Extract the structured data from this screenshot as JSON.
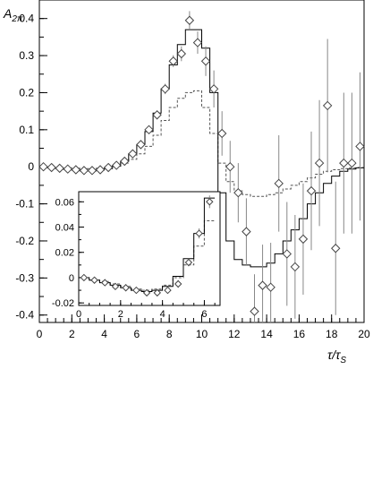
{
  "chart_data": [
    {
      "type": "scatter",
      "ylabel_main": "A",
      "ylabel_sub": "2π",
      "xlabel_main": "τ/τ",
      "xlabel_sub": "S",
      "xlim": [
        0,
        20
      ],
      "ylim": [
        -0.42,
        0.45
      ],
      "x_ticks": [
        0,
        2,
        4,
        6,
        8,
        10,
        12,
        14,
        16,
        18,
        20
      ],
      "x_tick_labels": [
        "0",
        "2",
        "4",
        "6",
        "8",
        "10",
        "12",
        "14",
        "16",
        "18",
        "20"
      ],
      "y_ticks": [
        -0.4,
        -0.3,
        -0.2,
        -0.1,
        0,
        0.1,
        0.2,
        0.3,
        0.4
      ],
      "y_tick_labels": [
        "-0.4",
        "-0.3",
        "-0.2",
        "-0.1",
        "0",
        "0.1",
        "0.2",
        "0.3",
        "0.4"
      ],
      "points": [
        {
          "x": 0.25,
          "y": 0.0,
          "err": 0.004
        },
        {
          "x": 0.75,
          "y": -0.002,
          "err": 0.004
        },
        {
          "x": 1.25,
          "y": -0.004,
          "err": 0.004
        },
        {
          "x": 1.75,
          "y": -0.006,
          "err": 0.004
        },
        {
          "x": 2.25,
          "y": -0.008,
          "err": 0.004
        },
        {
          "x": 2.75,
          "y": -0.01,
          "err": 0.004
        },
        {
          "x": 3.25,
          "y": -0.01,
          "err": 0.005
        },
        {
          "x": 3.75,
          "y": -0.008,
          "err": 0.005
        },
        {
          "x": 4.25,
          "y": -0.002,
          "err": 0.005
        },
        {
          "x": 4.75,
          "y": 0.004,
          "err": 0.006
        },
        {
          "x": 5.25,
          "y": 0.015,
          "err": 0.007
        },
        {
          "x": 5.75,
          "y": 0.035,
          "err": 0.008
        },
        {
          "x": 6.25,
          "y": 0.06,
          "err": 0.009
        },
        {
          "x": 6.75,
          "y": 0.1,
          "err": 0.01
        },
        {
          "x": 7.25,
          "y": 0.14,
          "err": 0.012
        },
        {
          "x": 7.75,
          "y": 0.21,
          "err": 0.014
        },
        {
          "x": 8.25,
          "y": 0.285,
          "err": 0.016
        },
        {
          "x": 8.75,
          "y": 0.305,
          "err": 0.02
        },
        {
          "x": 9.25,
          "y": 0.395,
          "err": 0.025
        },
        {
          "x": 9.75,
          "y": 0.335,
          "err": 0.03
        },
        {
          "x": 10.25,
          "y": 0.285,
          "err": 0.04
        },
        {
          "x": 10.75,
          "y": 0.21,
          "err": 0.05
        },
        {
          "x": 11.25,
          "y": 0.09,
          "err": 0.06
        },
        {
          "x": 11.75,
          "y": 0.0,
          "err": 0.07
        },
        {
          "x": 12.25,
          "y": -0.07,
          "err": 0.08
        },
        {
          "x": 12.75,
          "y": -0.175,
          "err": 0.09
        },
        {
          "x": 13.25,
          "y": -0.39,
          "err": 0.1
        },
        {
          "x": 13.75,
          "y": -0.32,
          "err": 0.11
        },
        {
          "x": 14.25,
          "y": -0.325,
          "err": 0.12
        },
        {
          "x": 14.75,
          "y": -0.045,
          "err": 0.13
        },
        {
          "x": 15.25,
          "y": -0.235,
          "err": 0.14
        },
        {
          "x": 15.75,
          "y": -0.27,
          "err": 0.14
        },
        {
          "x": 16.25,
          "y": -0.195,
          "err": 0.15
        },
        {
          "x": 16.75,
          "y": -0.065,
          "err": 0.16
        },
        {
          "x": 17.25,
          "y": 0.01,
          "err": 0.17
        },
        {
          "x": 17.75,
          "y": 0.165,
          "err": 0.18
        },
        {
          "x": 18.25,
          "y": -0.22,
          "err": 0.18
        },
        {
          "x": 18.75,
          "y": 0.01,
          "err": 0.19
        },
        {
          "x": 19.25,
          "y": 0.01,
          "err": 0.19
        },
        {
          "x": 19.75,
          "y": 0.055,
          "err": 0.2
        }
      ],
      "solid_histogram": {
        "bin_width": 0.5,
        "x_start": 0,
        "values": [
          0.0,
          -0.003,
          -0.005,
          -0.007,
          -0.009,
          -0.011,
          -0.011,
          -0.009,
          -0.005,
          0.002,
          0.015,
          0.035,
          0.06,
          0.095,
          0.145,
          0.21,
          0.275,
          0.33,
          0.37,
          0.37,
          0.32,
          0.2,
          -0.07,
          -0.2,
          -0.25,
          -0.265,
          -0.27,
          -0.27,
          -0.26,
          -0.235,
          -0.2,
          -0.17,
          -0.14,
          -0.1,
          -0.07,
          -0.045,
          -0.025,
          -0.012,
          -0.006,
          -0.003
        ]
      },
      "dashed_histogram": {
        "bin_width": 0.5,
        "x_start": 0,
        "values": [
          0.0,
          -0.001,
          -0.002,
          -0.003,
          -0.004,
          -0.005,
          -0.005,
          -0.004,
          -0.002,
          0.001,
          0.01,
          0.02,
          0.035,
          0.055,
          0.085,
          0.125,
          0.16,
          0.185,
          0.2,
          0.205,
          0.16,
          0.09,
          0.01,
          -0.04,
          -0.065,
          -0.075,
          -0.08,
          -0.08,
          -0.075,
          -0.07,
          -0.06,
          -0.05,
          -0.04,
          -0.03,
          -0.02,
          -0.012,
          -0.008,
          -0.005,
          -0.003,
          -0.002
        ]
      }
    },
    {
      "type": "scatter",
      "inset": true,
      "xlim": [
        0,
        6.75
      ],
      "ylim": [
        -0.022,
        0.068
      ],
      "x_ticks": [
        0,
        2,
        4,
        6
      ],
      "x_tick_labels": [
        "0",
        "2",
        "4",
        "6"
      ],
      "y_ticks": [
        -0.02,
        0,
        0.02,
        0.04,
        0.06
      ],
      "y_tick_labels": [
        "-0.02",
        "0",
        "0.02",
        "0.04",
        "0.06"
      ],
      "points": [
        {
          "x": 0.25,
          "y": 0.0,
          "err": 0.002
        },
        {
          "x": 0.75,
          "y": -0.002,
          "err": 0.002
        },
        {
          "x": 1.25,
          "y": -0.004,
          "err": 0.002
        },
        {
          "x": 1.75,
          "y": -0.007,
          "err": 0.002
        },
        {
          "x": 2.25,
          "y": -0.008,
          "err": 0.002
        },
        {
          "x": 2.75,
          "y": -0.01,
          "err": 0.002
        },
        {
          "x": 3.25,
          "y": -0.012,
          "err": 0.002
        },
        {
          "x": 3.75,
          "y": -0.012,
          "err": 0.002
        },
        {
          "x": 4.25,
          "y": -0.01,
          "err": 0.002
        },
        {
          "x": 4.75,
          "y": -0.005,
          "err": 0.003
        },
        {
          "x": 5.25,
          "y": 0.012,
          "err": 0.003
        },
        {
          "x": 5.75,
          "y": 0.035,
          "err": 0.004
        },
        {
          "x": 6.25,
          "y": 0.06,
          "err": 0.005
        }
      ],
      "solid_histogram": {
        "bin_width": 0.5,
        "x_start": 0,
        "values": [
          0.0,
          -0.002,
          -0.004,
          -0.006,
          -0.008,
          -0.01,
          -0.011,
          -0.01,
          -0.007,
          0.001,
          0.015,
          0.035,
          0.063
        ]
      },
      "dashed_histogram": {
        "bin_width": 0.5,
        "x_start": 0,
        "values": [
          0.0,
          -0.002,
          -0.003,
          -0.005,
          -0.007,
          -0.009,
          -0.01,
          -0.009,
          -0.006,
          0.0,
          0.01,
          0.025,
          0.045
        ]
      }
    }
  ]
}
